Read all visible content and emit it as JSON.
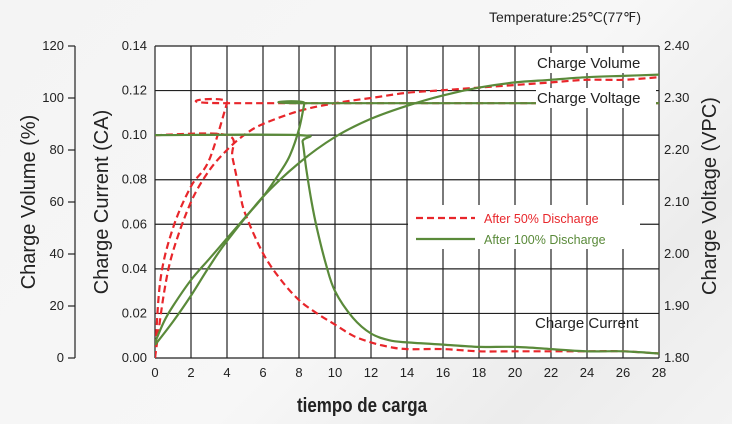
{
  "chart_data": {
    "type": "line",
    "title": "Temperature:25℃(77℉)",
    "xlabel": "tiempo de carga",
    "xlim": [
      0,
      28
    ],
    "x_ticks": [
      0,
      2,
      4,
      6,
      8,
      10,
      12,
      14,
      16,
      18,
      20,
      22,
      24,
      26,
      28
    ],
    "y_axes": {
      "volume": {
        "label": "Charge  Volume (%)",
        "ylim": [
          0,
          120
        ],
        "ticks": [
          "0",
          "20",
          "40",
          "60",
          "80",
          "100",
          "120"
        ]
      },
      "current": {
        "label": "Charge  Current (CA)",
        "ylim": [
          0,
          0.14
        ],
        "ticks": [
          "0.00",
          "0.02",
          "0.04",
          "0.06",
          "0.08",
          "0.10",
          "0.12",
          "0.14"
        ]
      },
      "voltage": {
        "label": "Charge Voltage (VPC)",
        "ylim": [
          1.8,
          2.4
        ],
        "ticks": [
          "1.80",
          "1.90",
          "2.00",
          "2.10",
          "2.20",
          "2.30",
          "2.40"
        ]
      }
    },
    "grid": true,
    "annotations": [
      "Charge Volume",
      "Charge Voltage",
      "Charge Current"
    ],
    "legend": {
      "placement": "center-right",
      "entries": [
        {
          "label": "After 50% Discharge",
          "color": "#e8262b",
          "style": "dashed"
        },
        {
          "label": "After 100% Discharge",
          "color": "#5a8a3a",
          "style": "solid"
        }
      ]
    },
    "series": [
      {
        "group": "After 50% Discharge",
        "kind": "Charge Volume",
        "axis": "volume",
        "color": "#e8262b",
        "style": "dashed",
        "x": [
          0,
          0.5,
          1,
          2,
          3,
          4,
          5,
          6,
          8,
          10,
          12,
          14,
          16,
          18,
          20,
          22,
          24,
          26,
          28
        ],
        "y": [
          0,
          25,
          41,
          60,
          72,
          80,
          86,
          90,
          95,
          98,
          100,
          102,
          103,
          104,
          105,
          106,
          107,
          107,
          108
        ]
      },
      {
        "group": "After 50% Discharge",
        "kind": "Charge Voltage",
        "axis": "voltage",
        "color": "#e8262b",
        "style": "dashed",
        "x": [
          0,
          0.3,
          1,
          2,
          3,
          4,
          4.01,
          28
        ],
        "y": [
          1.8,
          1.95,
          2.05,
          2.13,
          2.18,
          2.29,
          2.29,
          2.29
        ]
      },
      {
        "group": "After 50% Discharge",
        "kind": "Charge Current",
        "axis": "current",
        "color": "#e8262b",
        "style": "dashed",
        "x": [
          0,
          4,
          4.3,
          4.7,
          5,
          6,
          7,
          8,
          9,
          10,
          11,
          12,
          13,
          14,
          16,
          18,
          20,
          22,
          24,
          26,
          28
        ],
        "y": [
          0.1,
          0.1,
          0.09,
          0.075,
          0.065,
          0.047,
          0.035,
          0.026,
          0.02,
          0.015,
          0.01,
          0.007,
          0.005,
          0.004,
          0.004,
          0.003,
          0.003,
          0.003,
          0.003,
          0.003,
          0.002
        ]
      },
      {
        "group": "After 100% Discharge",
        "kind": "Charge Volume",
        "axis": "volume",
        "color": "#5a8a3a",
        "style": "solid",
        "x": [
          0,
          1,
          2,
          3,
          4,
          6,
          8,
          10,
          12,
          14,
          16,
          18,
          20,
          22,
          24,
          26,
          28
        ],
        "y": [
          5,
          14,
          24,
          35,
          45,
          62,
          75,
          85,
          92,
          97,
          101,
          104,
          106,
          107,
          108,
          108.5,
          109
        ]
      },
      {
        "group": "After 100% Discharge",
        "kind": "Charge Voltage",
        "axis": "voltage",
        "color": "#5a8a3a",
        "style": "solid",
        "x": [
          0,
          0.5,
          1,
          2,
          3,
          4,
          5,
          6,
          7,
          7.5,
          8,
          8.3,
          8.31,
          28
        ],
        "y": [
          1.83,
          1.87,
          1.9,
          1.95,
          1.99,
          2.03,
          2.07,
          2.11,
          2.16,
          2.19,
          2.24,
          2.29,
          2.29,
          2.29
        ]
      },
      {
        "group": "After 100% Discharge",
        "kind": "Charge Current",
        "axis": "current",
        "color": "#5a8a3a",
        "style": "solid",
        "x": [
          0,
          8,
          8.2,
          8.4,
          8.7,
          9,
          9.5,
          10,
          11,
          12,
          13,
          14,
          16,
          18,
          20,
          22,
          24,
          26,
          28
        ],
        "y": [
          0.1,
          0.1,
          0.097,
          0.085,
          0.07,
          0.058,
          0.042,
          0.03,
          0.018,
          0.011,
          0.008,
          0.007,
          0.006,
          0.005,
          0.005,
          0.004,
          0.003,
          0.003,
          0.002
        ]
      }
    ]
  }
}
